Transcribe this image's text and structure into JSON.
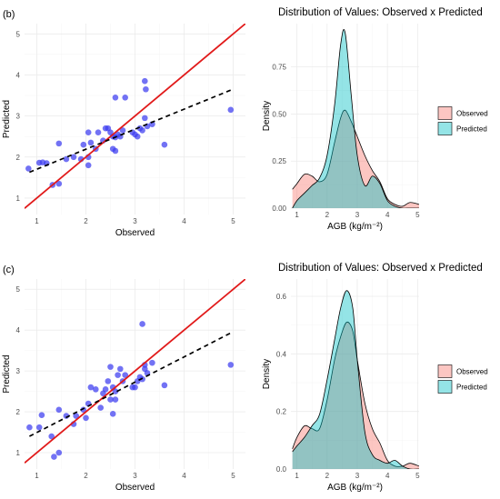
{
  "colors": {
    "points": "#3b3bf0",
    "identity_line": "#e11a1a",
    "fit_line": "#000000",
    "observed_fill": "#f8766d",
    "predicted_fill": "#00bfc4"
  },
  "chart_data": [
    {
      "type": "scatter",
      "panel_label": "(b)",
      "title": "",
      "xlabel": "Observed",
      "ylabel": "Predicted",
      "xlim": [
        0.75,
        5.25
      ],
      "ylim": [
        0.6,
        5.25
      ],
      "xticks": [
        1,
        2,
        3,
        4,
        5
      ],
      "yticks": [
        1,
        2,
        3,
        4,
        5
      ],
      "grid": true,
      "identity_line": true,
      "fit_line": {
        "style": "dashed",
        "x": [
          0.85,
          4.95
        ],
        "y": [
          1.63,
          3.63
        ]
      },
      "points": [
        [
          0.83,
          1.72
        ],
        [
          1.05,
          1.86
        ],
        [
          1.12,
          1.87
        ],
        [
          1.2,
          1.85
        ],
        [
          1.32,
          1.32
        ],
        [
          1.45,
          1.35
        ],
        [
          1.45,
          2.33
        ],
        [
          1.6,
          1.95
        ],
        [
          1.75,
          2.0
        ],
        [
          1.9,
          1.95
        ],
        [
          1.95,
          2.3
        ],
        [
          2.05,
          2.6
        ],
        [
          2.05,
          2.0
        ],
        [
          2.05,
          1.8
        ],
        [
          2.1,
          2.35
        ],
        [
          2.2,
          2.2
        ],
        [
          2.25,
          2.6
        ],
        [
          2.35,
          2.4
        ],
        [
          2.4,
          2.7
        ],
        [
          2.45,
          2.7
        ],
        [
          2.5,
          2.6
        ],
        [
          2.55,
          2.2
        ],
        [
          2.55,
          2.5
        ],
        [
          2.6,
          3.45
        ],
        [
          2.6,
          2.15
        ],
        [
          2.6,
          2.48
        ],
        [
          2.65,
          2.55
        ],
        [
          2.7,
          2.5
        ],
        [
          2.75,
          2.65
        ],
        [
          2.8,
          3.45
        ],
        [
          2.95,
          2.6
        ],
        [
          3.0,
          2.55
        ],
        [
          3.05,
          2.5
        ],
        [
          3.1,
          2.7
        ],
        [
          3.15,
          2.65
        ],
        [
          3.2,
          2.95
        ],
        [
          3.2,
          3.85
        ],
        [
          3.22,
          3.65
        ],
        [
          3.25,
          2.75
        ],
        [
          3.35,
          2.8
        ],
        [
          3.6,
          2.3
        ],
        [
          4.95,
          3.15
        ]
      ]
    },
    {
      "type": "area",
      "title": "Distribution of Values: Observed x Predicted",
      "xlabel": "AGB (kg/m⁻²)",
      "ylabel": "Density",
      "xlim": [
        0.8,
        5.05
      ],
      "ylim": [
        0,
        0.98
      ],
      "xticks": [
        1,
        2,
        3,
        4,
        5
      ],
      "yticks": [
        0.0,
        0.25,
        0.5,
        0.75
      ],
      "ytick_labels": [
        "0.00",
        "0.25",
        "0.50",
        "0.75"
      ],
      "grid": true,
      "legend": {
        "placement": "right",
        "entries": [
          "Observed",
          "Predicted"
        ]
      },
      "x": [
        0.85,
        1.0,
        1.25,
        1.5,
        1.75,
        2.0,
        2.25,
        2.45,
        2.6,
        2.8,
        3.0,
        3.25,
        3.5,
        3.75,
        4.0,
        4.25,
        4.5,
        4.75,
        5.05
      ],
      "series": [
        {
          "name": "Observed",
          "values": [
            0.1,
            0.13,
            0.18,
            0.17,
            0.14,
            0.18,
            0.35,
            0.48,
            0.52,
            0.46,
            0.38,
            0.28,
            0.2,
            0.14,
            0.05,
            0.02,
            0.01,
            0.03,
            0.02
          ]
        },
        {
          "name": "Predicted",
          "values": [
            0.0,
            0.04,
            0.08,
            0.12,
            0.16,
            0.28,
            0.55,
            0.87,
            0.93,
            0.6,
            0.28,
            0.12,
            0.17,
            0.13,
            0.04,
            0.01,
            0.0,
            0.0,
            0.0
          ]
        }
      ]
    },
    {
      "type": "scatter",
      "panel_label": "(c)",
      "title": "",
      "xlabel": "Observed",
      "ylabel": "Predicted",
      "xlim": [
        0.75,
        5.25
      ],
      "ylim": [
        0.6,
        5.25
      ],
      "xticks": [
        1,
        2,
        3,
        4,
        5
      ],
      "yticks": [
        1,
        2,
        3,
        4,
        5
      ],
      "grid": true,
      "identity_line": true,
      "fit_line": {
        "style": "dashed",
        "x": [
          0.85,
          4.95
        ],
        "y": [
          1.4,
          3.93
        ]
      },
      "points": [
        [
          0.85,
          1.62
        ],
        [
          1.05,
          1.62
        ],
        [
          1.1,
          1.92
        ],
        [
          1.3,
          1.4
        ],
        [
          1.35,
          0.9
        ],
        [
          1.45,
          1.0
        ],
        [
          1.45,
          2.05
        ],
        [
          1.6,
          1.9
        ],
        [
          1.75,
          1.7
        ],
        [
          1.8,
          1.9
        ],
        [
          1.95,
          2.05
        ],
        [
          2.0,
          1.85
        ],
        [
          2.05,
          2.2
        ],
        [
          2.1,
          2.6
        ],
        [
          2.2,
          2.55
        ],
        [
          2.3,
          2.1
        ],
        [
          2.35,
          2.45
        ],
        [
          2.4,
          2.55
        ],
        [
          2.45,
          2.75
        ],
        [
          2.5,
          3.1
        ],
        [
          2.5,
          2.3
        ],
        [
          2.55,
          1.95
        ],
        [
          2.55,
          2.6
        ],
        [
          2.6,
          2.3
        ],
        [
          2.6,
          2.5
        ],
        [
          2.65,
          2.9
        ],
        [
          2.7,
          3.05
        ],
        [
          2.75,
          2.75
        ],
        [
          2.8,
          2.9
        ],
        [
          2.95,
          2.6
        ],
        [
          3.0,
          2.6
        ],
        [
          3.05,
          2.75
        ],
        [
          3.1,
          2.85
        ],
        [
          3.15,
          2.8
        ],
        [
          3.15,
          4.15
        ],
        [
          3.2,
          3.05
        ],
        [
          3.2,
          3.15
        ],
        [
          3.25,
          2.95
        ],
        [
          3.35,
          3.2
        ],
        [
          3.6,
          2.65
        ],
        [
          4.95,
          3.15
        ]
      ]
    },
    {
      "type": "area",
      "title": "Distribution of Values: Observed x Predicted",
      "xlabel": "AGB (kg/m⁻²)",
      "ylabel": "Density",
      "xlim": [
        0.8,
        5.05
      ],
      "ylim": [
        0,
        0.66
      ],
      "xticks": [
        1,
        2,
        3,
        4,
        5
      ],
      "yticks": [
        0.0,
        0.2,
        0.4,
        0.6
      ],
      "ytick_labels": [
        "0.0",
        "0.2",
        "0.4",
        "0.6"
      ],
      "grid": true,
      "legend": {
        "placement": "right",
        "entries": [
          "Observed",
          "Predicted"
        ]
      },
      "x": [
        0.85,
        1.0,
        1.25,
        1.5,
        1.75,
        2.0,
        2.25,
        2.45,
        2.65,
        2.85,
        3.0,
        3.25,
        3.5,
        3.75,
        4.0,
        4.25,
        4.5,
        4.75,
        5.05
      ],
      "series": [
        {
          "name": "Observed",
          "values": [
            0.07,
            0.11,
            0.15,
            0.14,
            0.14,
            0.24,
            0.38,
            0.46,
            0.51,
            0.48,
            0.38,
            0.23,
            0.14,
            0.09,
            0.03,
            0.01,
            0.01,
            0.02,
            0.01
          ]
        },
        {
          "name": "Predicted",
          "values": [
            0.06,
            0.08,
            0.11,
            0.15,
            0.19,
            0.31,
            0.45,
            0.56,
            0.62,
            0.56,
            0.38,
            0.13,
            0.05,
            0.03,
            0.02,
            0.03,
            0.01,
            0.0,
            0.0
          ]
        }
      ]
    }
  ]
}
